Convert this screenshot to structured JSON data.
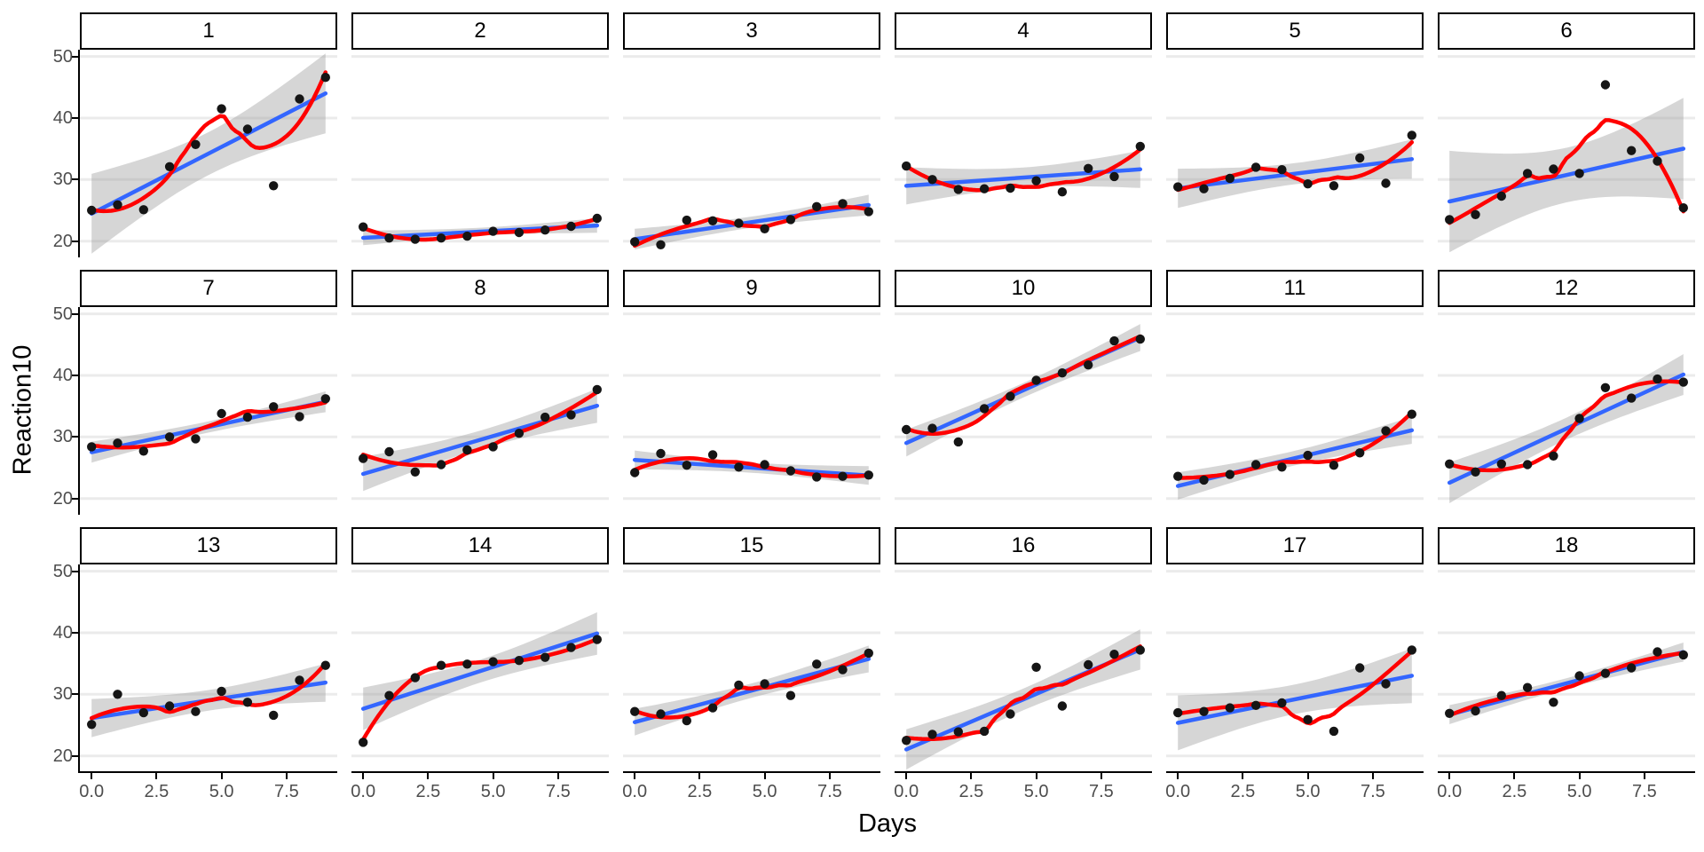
{
  "figure": {
    "ylabel": "Reaction10",
    "xlabel": "Days"
  },
  "chart_data": {
    "type": "scatter",
    "title": "",
    "xlabel": "Days",
    "ylabel": "Reaction10",
    "facet_layout": {
      "rows": 3,
      "cols": 6
    },
    "facet_labels": [
      "1",
      "2",
      "3",
      "4",
      "5",
      "6",
      "7",
      "8",
      "9",
      "10",
      "11",
      "12",
      "13",
      "14",
      "15",
      "16",
      "17",
      "18"
    ],
    "x": [
      0,
      1,
      2,
      3,
      4,
      5,
      6,
      7,
      8,
      9
    ],
    "series": [
      {
        "name": "1",
        "values": [
          25.0,
          25.9,
          25.1,
          32.1,
          35.7,
          41.5,
          38.2,
          29.0,
          43.1,
          46.6
        ]
      },
      {
        "name": "2",
        "values": [
          22.3,
          20.5,
          20.3,
          20.5,
          20.8,
          21.6,
          21.4,
          21.8,
          22.4,
          23.7
        ]
      },
      {
        "name": "3",
        "values": [
          19.9,
          19.4,
          23.4,
          23.3,
          22.9,
          22.0,
          23.5,
          25.6,
          26.1,
          24.8
        ]
      },
      {
        "name": "4",
        "values": [
          32.2,
          30.0,
          28.4,
          28.5,
          28.6,
          29.8,
          28.0,
          31.8,
          30.5,
          35.4
        ]
      },
      {
        "name": "5",
        "values": [
          28.8,
          28.5,
          30.2,
          32.0,
          31.6,
          29.3,
          29.0,
          33.5,
          29.4,
          37.2
        ]
      },
      {
        "name": "6",
        "values": [
          23.5,
          24.3,
          27.3,
          31.0,
          31.7,
          31.0,
          45.4,
          34.7,
          33.0,
          25.4
        ]
      },
      {
        "name": "7",
        "values": [
          28.4,
          29.0,
          27.7,
          30.0,
          29.7,
          33.8,
          33.2,
          34.9,
          33.3,
          36.2
        ]
      },
      {
        "name": "8",
        "values": [
          26.5,
          27.6,
          24.3,
          25.5,
          27.9,
          28.4,
          30.6,
          33.2,
          33.6,
          37.7
        ]
      },
      {
        "name": "9",
        "values": [
          24.2,
          27.3,
          25.4,
          27.1,
          25.1,
          25.5,
          24.5,
          23.5,
          23.6,
          23.8
        ]
      },
      {
        "name": "10",
        "values": [
          31.2,
          31.4,
          29.2,
          34.6,
          36.6,
          39.2,
          40.4,
          41.7,
          45.6,
          45.9
        ]
      },
      {
        "name": "11",
        "values": [
          23.6,
          23.0,
          23.9,
          25.5,
          25.1,
          27.0,
          25.4,
          27.4,
          31.0,
          33.7
        ]
      },
      {
        "name": "12",
        "values": [
          25.6,
          24.3,
          25.6,
          25.5,
          26.9,
          33.0,
          38.0,
          36.3,
          39.4,
          38.9
        ]
      },
      {
        "name": "13",
        "values": [
          25.1,
          30.0,
          27.0,
          28.1,
          27.2,
          30.5,
          28.7,
          26.6,
          32.3,
          34.7
        ]
      },
      {
        "name": "14",
        "values": [
          22.2,
          29.8,
          32.7,
          34.7,
          34.9,
          35.3,
          35.5,
          36.0,
          37.6,
          38.9
        ]
      },
      {
        "name": "15",
        "values": [
          27.2,
          26.8,
          25.7,
          27.8,
          31.5,
          31.7,
          29.8,
          34.9,
          34.0,
          36.7
        ]
      },
      {
        "name": "16",
        "values": [
          22.5,
          23.5,
          23.9,
          24.0,
          26.8,
          34.4,
          28.1,
          34.8,
          36.5,
          37.2
        ]
      },
      {
        "name": "17",
        "values": [
          27.0,
          27.2,
          27.8,
          28.2,
          28.6,
          25.9,
          24.0,
          34.3,
          31.7,
          37.2
        ]
      },
      {
        "name": "18",
        "values": [
          26.9,
          27.3,
          29.8,
          31.1,
          28.7,
          33.0,
          33.4,
          34.3,
          36.9,
          36.4
        ]
      }
    ],
    "x_tick_labels": [
      "0.0",
      "2.5",
      "5.0",
      "7.5"
    ],
    "x_tick_values": [
      0,
      2.5,
      5,
      7.5
    ],
    "y_tick_labels": [
      "20",
      "30",
      "40",
      "50"
    ],
    "y_tick_values": [
      20,
      30,
      40,
      50
    ],
    "xlim": [
      -0.45,
      9.45
    ],
    "ylim": [
      17.5,
      51.1
    ],
    "grid": "horizontal gridlines only",
    "legend_position": "none",
    "layers": [
      {
        "geom": "ribbon",
        "meaning": "95% confidence band of linear fit",
        "fill": "rgba(153,153,153,0.4)"
      },
      {
        "geom": "smooth-linear",
        "color": "#3366FF",
        "stroke_width": 4.5
      },
      {
        "geom": "smooth-loess",
        "color": "#FF0000",
        "stroke_width": 4.5
      },
      {
        "geom": "point",
        "color": "#151515",
        "radius": 5.2
      }
    ]
  },
  "style": {
    "background": "#FFFFFF",
    "strip_background": "#FFFFFF",
    "strip_border": "#000000",
    "strip_text": "#000000",
    "tick_label_color": "#4D4D4D",
    "axis_line_color": "#000000",
    "gridline_color": "#EBEBEB"
  }
}
